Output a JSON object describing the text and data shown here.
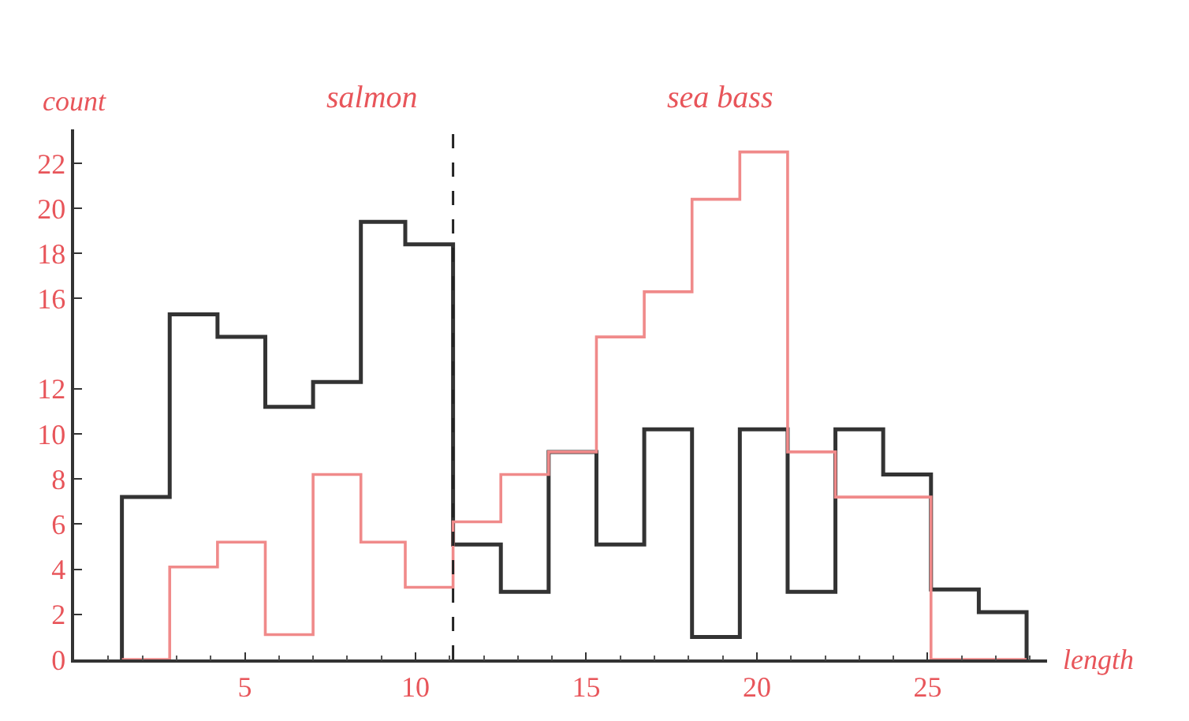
{
  "chart_data": {
    "type": "histogram",
    "xlabel": "length",
    "ylabel": "count",
    "annotations": [
      "salmon",
      "sea bass"
    ],
    "bins": [
      1.4,
      2.8,
      4.2,
      5.6,
      7.0,
      8.4,
      9.7,
      11.1,
      12.5,
      13.9,
      15.3,
      16.7,
      18.1,
      19.5,
      20.9,
      22.3,
      23.7,
      25.1,
      26.5,
      27.9
    ],
    "series": [
      {
        "color": "#333333",
        "values": [
          7.2,
          15.3,
          14.3,
          11.2,
          12.3,
          19.4,
          18.4,
          5.1,
          3.0,
          9.2,
          5.1,
          10.2,
          1.0,
          10.2,
          3.0,
          10.2,
          8.2,
          3.1,
          2.1
        ]
      },
      {
        "color": "#f08a8a",
        "values": [
          0,
          4.1,
          5.2,
          1.1,
          8.2,
          5.2,
          3.2,
          6.1,
          8.2,
          9.2,
          14.3,
          16.3,
          20.4,
          22.5,
          9.2,
          7.2,
          7.2,
          0,
          0
        ]
      }
    ],
    "xlim": [
      0,
      28.5
    ],
    "ylim": [
      0,
      23.5
    ],
    "xticks": [
      5,
      10,
      15,
      20,
      25
    ],
    "yticks": [
      0,
      2,
      4,
      6,
      8,
      10,
      12,
      16,
      18,
      20,
      22
    ],
    "ref_lines": [
      {
        "axis": "x",
        "value": 11.1,
        "color": "#222222",
        "line_style": "dashed"
      }
    ]
  }
}
